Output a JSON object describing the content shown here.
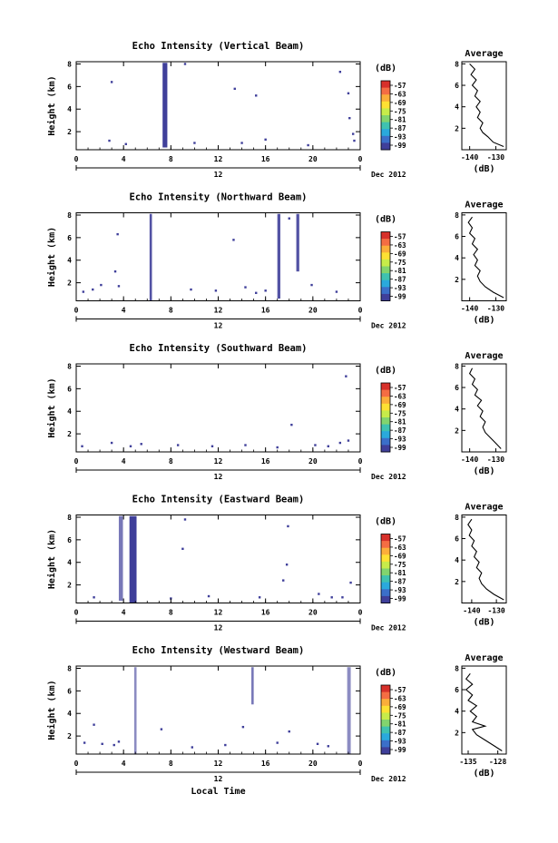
{
  "figure": {
    "xlabel": "Local Time",
    "date_label": "Dec 2012",
    "date_day": "12",
    "colorbar_unit": "(dB)",
    "colorbar_ticks": [
      "-57",
      "-63",
      "-69",
      "-75",
      "-81",
      "-87",
      "-93",
      "-99"
    ],
    "colorbar_colors": [
      "#d7302a",
      "#f46d43",
      "#fbae3a",
      "#fee133",
      "#c7ec4a",
      "#82d46e",
      "#3fc2b0",
      "#2aa9dc",
      "#3b6fc9",
      "#3f3f9a"
    ],
    "mark_color": "#3f3f9a",
    "line_color": "#000000"
  },
  "chart_data": [
    {
      "type": "heatmap",
      "title": "Echo Intensity (Vertical Beam)",
      "ylabel": "Height (km)",
      "x_ticks": [
        "0",
        "4",
        "8",
        "12",
        "16",
        "20",
        "0"
      ],
      "y_ticks": [
        "2",
        "4",
        "6",
        "8"
      ],
      "xlim": [
        0,
        24
      ],
      "ylim": [
        0.4,
        8.2
      ],
      "columns": [
        [
          7.3,
          7.7,
          0.6,
          8.1,
          1.0
        ]
      ],
      "points": [
        [
          3.0,
          6.4
        ],
        [
          9.2,
          8.0
        ],
        [
          13.4,
          5.8
        ],
        [
          15.2,
          5.2
        ],
        [
          22.3,
          7.3
        ],
        [
          23.0,
          5.4
        ],
        [
          23.1,
          3.2
        ],
        [
          2.8,
          1.2
        ],
        [
          4.2,
          0.9
        ],
        [
          10.0,
          1.0
        ],
        [
          14.0,
          1.0
        ],
        [
          16.0,
          1.3
        ],
        [
          19.6,
          0.8
        ],
        [
          23.4,
          1.8
        ],
        [
          23.5,
          1.2
        ]
      ],
      "average": {
        "title": "Average",
        "xlabel": "(dB)",
        "x_ticks": [
          "-140",
          "-130"
        ],
        "y_ticks": [
          "2",
          "4",
          "6",
          "8"
        ],
        "xlim": [
          -143,
          -126
        ],
        "ylim": [
          0,
          8.2
        ],
        "profile": [
          [
            -127,
            0.3
          ],
          [
            -131,
            0.7
          ],
          [
            -133,
            1.2
          ],
          [
            -135,
            1.6
          ],
          [
            -136,
            2.0
          ],
          [
            -135,
            2.5
          ],
          [
            -137,
            3.0
          ],
          [
            -136,
            3.5
          ],
          [
            -137.5,
            4.0
          ],
          [
            -136,
            4.5
          ],
          [
            -138,
            5.0
          ],
          [
            -137,
            5.5
          ],
          [
            -139,
            6.0
          ],
          [
            -137.5,
            6.5
          ],
          [
            -139.5,
            7.0
          ],
          [
            -138,
            7.5
          ],
          [
            -140,
            8.0
          ]
        ]
      }
    },
    {
      "type": "heatmap",
      "title": "Echo Intensity (Northward Beam)",
      "ylabel": "Height (km)",
      "x_ticks": [
        "0",
        "4",
        "8",
        "12",
        "16",
        "20",
        "0"
      ],
      "y_ticks": [
        "2",
        "4",
        "6",
        "8"
      ],
      "xlim": [
        0,
        24
      ],
      "ylim": [
        0.4,
        8.2
      ],
      "columns": [
        [
          6.2,
          6.4,
          0.4,
          8.1,
          0.9
        ],
        [
          17.0,
          17.25,
          0.6,
          8.1,
          0.9
        ],
        [
          18.6,
          18.85,
          3.0,
          8.1,
          0.9
        ]
      ],
      "points": [
        [
          0.6,
          1.2
        ],
        [
          1.4,
          1.4
        ],
        [
          2.1,
          1.8
        ],
        [
          3.6,
          1.7
        ],
        [
          3.5,
          6.3
        ],
        [
          3.3,
          3.0
        ],
        [
          9.7,
          1.4
        ],
        [
          11.8,
          1.3
        ],
        [
          13.3,
          5.8
        ],
        [
          14.3,
          1.6
        ],
        [
          15.2,
          1.1
        ],
        [
          16.0,
          1.3
        ],
        [
          18.0,
          7.7
        ],
        [
          19.9,
          1.8
        ],
        [
          22.0,
          1.2
        ]
      ],
      "average": {
        "title": "Average",
        "xlabel": "(dB)",
        "x_ticks": [
          "-140",
          "-130"
        ],
        "y_ticks": [
          "2",
          "4",
          "6",
          "8"
        ],
        "xlim": [
          -143,
          -126
        ],
        "ylim": [
          0,
          8.2
        ],
        "profile": [
          [
            -127,
            0.3
          ],
          [
            -131,
            0.8
          ],
          [
            -134,
            1.3
          ],
          [
            -136,
            1.8
          ],
          [
            -137,
            2.3
          ],
          [
            -136,
            2.8
          ],
          [
            -138,
            3.3
          ],
          [
            -137,
            3.8
          ],
          [
            -138.5,
            4.3
          ],
          [
            -137,
            4.8
          ],
          [
            -139,
            5.3
          ],
          [
            -138,
            5.8
          ],
          [
            -140,
            6.3
          ],
          [
            -139,
            6.8
          ],
          [
            -140.5,
            7.3
          ],
          [
            -139,
            7.8
          ]
        ]
      }
    },
    {
      "type": "heatmap",
      "title": "Echo Intensity (Southward Beam)",
      "ylabel": "Height (km)",
      "x_ticks": [
        "0",
        "4",
        "8",
        "12",
        "16",
        "20",
        "0"
      ],
      "y_ticks": [
        "2",
        "4",
        "6",
        "8"
      ],
      "xlim": [
        0,
        24
      ],
      "ylim": [
        0.4,
        8.2
      ],
      "columns": [],
      "points": [
        [
          0.5,
          0.9
        ],
        [
          3.0,
          1.2
        ],
        [
          4.6,
          0.9
        ],
        [
          5.5,
          1.1
        ],
        [
          11.5,
          0.9
        ],
        [
          14.3,
          1.0
        ],
        [
          18.2,
          2.8
        ],
        [
          20.2,
          1.0
        ],
        [
          21.3,
          0.9
        ],
        [
          22.3,
          1.2
        ],
        [
          22.8,
          7.1
        ],
        [
          23.0,
          1.4
        ],
        [
          17.0,
          0.8
        ],
        [
          8.6,
          1.0
        ]
      ],
      "average": {
        "title": "Average",
        "xlabel": "(dB)",
        "x_ticks": [
          "-140",
          "-130"
        ],
        "y_ticks": [
          "2",
          "4",
          "6",
          "8"
        ],
        "xlim": [
          -143,
          -126
        ],
        "ylim": [
          0,
          8.2
        ],
        "profile": [
          [
            -128,
            0.3
          ],
          [
            -130,
            0.8
          ],
          [
            -132,
            1.3
          ],
          [
            -134,
            1.8
          ],
          [
            -135,
            2.3
          ],
          [
            -134,
            2.8
          ],
          [
            -136,
            3.3
          ],
          [
            -135,
            3.8
          ],
          [
            -137,
            4.3
          ],
          [
            -135.5,
            4.8
          ],
          [
            -138,
            5.3
          ],
          [
            -137,
            5.8
          ],
          [
            -139,
            6.3
          ],
          [
            -138,
            6.8
          ],
          [
            -140,
            7.3
          ],
          [
            -139,
            7.8
          ]
        ]
      }
    },
    {
      "type": "heatmap",
      "title": "Echo Intensity (Eastward Beam)",
      "ylabel": "Height (km)",
      "x_ticks": [
        "0",
        "4",
        "8",
        "12",
        "16",
        "20",
        "0"
      ],
      "y_ticks": [
        "2",
        "4",
        "6",
        "8"
      ],
      "xlim": [
        0,
        24
      ],
      "ylim": [
        0.4,
        8.2
      ],
      "columns": [
        [
          3.6,
          3.95,
          0.6,
          8.1,
          0.7
        ],
        [
          4.5,
          5.1,
          0.4,
          8.1,
          1.0
        ]
      ],
      "points": [
        [
          1.5,
          0.9
        ],
        [
          9.2,
          7.8
        ],
        [
          9.0,
          5.2
        ],
        [
          11.2,
          1.0
        ],
        [
          15.5,
          0.9
        ],
        [
          17.9,
          7.2
        ],
        [
          17.8,
          3.8
        ],
        [
          17.5,
          2.4
        ],
        [
          20.5,
          1.2
        ],
        [
          21.6,
          0.9
        ],
        [
          22.5,
          0.9
        ],
        [
          23.2,
          2.2
        ],
        [
          8.0,
          0.8
        ]
      ],
      "average": {
        "title": "Average",
        "xlabel": "(dB)",
        "x_ticks": [
          "-140",
          "-130"
        ],
        "y_ticks": [
          "2",
          "4",
          "6",
          "8"
        ],
        "xlim": [
          -144,
          -126
        ],
        "ylim": [
          0,
          8.2
        ],
        "profile": [
          [
            -127,
            0.3
          ],
          [
            -131,
            0.8
          ],
          [
            -134,
            1.3
          ],
          [
            -136,
            1.8
          ],
          [
            -137,
            2.3
          ],
          [
            -136,
            2.8
          ],
          [
            -138,
            3.3
          ],
          [
            -137,
            3.8
          ],
          [
            -139,
            4.3
          ],
          [
            -138,
            4.8
          ],
          [
            -140,
            5.3
          ],
          [
            -139,
            5.8
          ],
          [
            -141,
            6.3
          ],
          [
            -140,
            6.8
          ],
          [
            -141.5,
            7.3
          ],
          [
            -140,
            7.8
          ]
        ]
      }
    },
    {
      "type": "heatmap",
      "title": "Echo Intensity (Westward Beam)",
      "ylabel": "Height (km)",
      "x_ticks": [
        "0",
        "4",
        "8",
        "12",
        "16",
        "20",
        "0"
      ],
      "y_ticks": [
        "2",
        "4",
        "6",
        "8"
      ],
      "xlim": [
        0,
        24
      ],
      "ylim": [
        0.4,
        8.2
      ],
      "columns": [
        [
          4.9,
          5.1,
          0.4,
          8.1,
          0.6
        ],
        [
          14.8,
          15.0,
          4.8,
          8.1,
          0.7
        ],
        [
          22.9,
          23.2,
          0.4,
          8.1,
          0.6
        ]
      ],
      "points": [
        [
          0.7,
          1.4
        ],
        [
          1.5,
          3.0
        ],
        [
          2.2,
          1.3
        ],
        [
          3.2,
          1.2
        ],
        [
          3.6,
          1.5
        ],
        [
          7.2,
          2.6
        ],
        [
          9.8,
          1.0
        ],
        [
          12.6,
          1.2
        ],
        [
          14.1,
          2.8
        ],
        [
          17.0,
          1.4
        ],
        [
          18.0,
          2.4
        ],
        [
          20.4,
          1.3
        ],
        [
          21.3,
          1.1
        ]
      ],
      "average": {
        "title": "Average",
        "xlabel": "(dB)",
        "x_ticks": [
          "-135",
          "-128"
        ],
        "y_ticks": [
          "2",
          "4",
          "6",
          "8"
        ],
        "xlim": [
          -136.5,
          -126
        ],
        "ylim": [
          0,
          8.2
        ],
        "profile": [
          [
            -127,
            0.3
          ],
          [
            -129,
            0.8
          ],
          [
            -131,
            1.3
          ],
          [
            -133,
            1.8
          ],
          [
            -134,
            2.3
          ],
          [
            -131,
            2.6
          ],
          [
            -134,
            3.0
          ],
          [
            -133,
            3.5
          ],
          [
            -134.5,
            4.0
          ],
          [
            -133,
            4.5
          ],
          [
            -135,
            5.0
          ],
          [
            -134,
            5.5
          ],
          [
            -135.5,
            6.0
          ],
          [
            -134,
            6.5
          ],
          [
            -135.5,
            7.0
          ],
          [
            -134.5,
            7.5
          ]
        ]
      }
    }
  ]
}
